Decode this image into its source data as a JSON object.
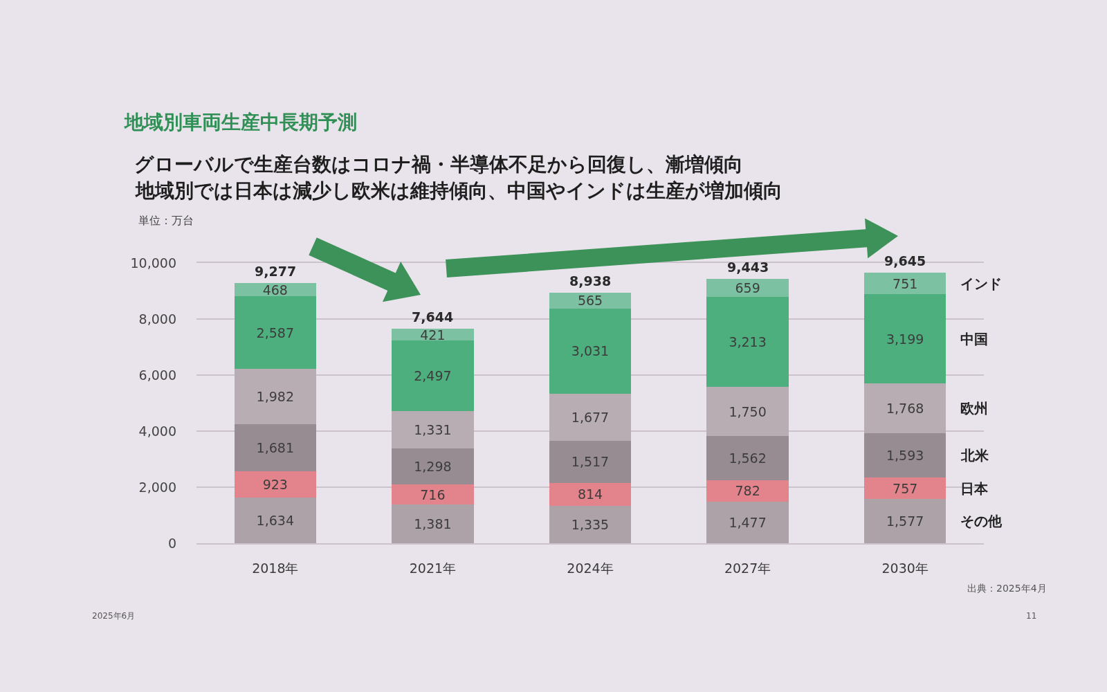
{
  "chart_data": {
    "type": "bar",
    "stacked": true,
    "title": "地域別車両生産中長期予測",
    "subtitle": "グローバルで生産台数はコロナ禍・半導体不足から回復し、漸増傾向",
    "ylabel": "単位：万台",
    "categories": [
      "2018年",
      "2021年",
      "2024年",
      "2027年",
      "2030年"
    ],
    "series": [
      {
        "name": "その他",
        "color": "#aca2a7",
        "values": [
          1634,
          1381,
          1335,
          1477,
          1577
        ],
        "value_labels": [
          "1,634",
          "1,381",
          "1,335",
          "1,477",
          "1,577"
        ]
      },
      {
        "name": "日本",
        "color": "#e3838b",
        "values": [
          923,
          716,
          814,
          782,
          757
        ],
        "value_labels": [
          "923",
          "716",
          "814",
          "782",
          "757"
        ]
      },
      {
        "name": "北米",
        "color": "#978c91",
        "values": [
          1681,
          1298,
          1517,
          1562,
          1593
        ],
        "value_labels": [
          "1,681",
          "1,298",
          "1,517",
          "1,562",
          "1,593"
        ]
      },
      {
        "name": "欧州",
        "color": "#b8adb2",
        "values": [
          1982,
          1331,
          1677,
          1750,
          1768
        ],
        "value_labels": [
          "1,982",
          "1,331",
          "1,677",
          "1,750",
          "1,768"
        ]
      },
      {
        "name": "中国",
        "color": "#4dae7e",
        "values": [
          2587,
          2497,
          3031,
          3213,
          3199
        ],
        "value_labels": [
          "2,587",
          "2,497",
          "3,031",
          "3,213",
          "3,199"
        ]
      },
      {
        "name": "インド",
        "color": "#7cc2a2",
        "values": [
          468,
          421,
          565,
          659,
          751
        ],
        "value_labels": [
          "468",
          "421",
          "565",
          "659",
          "751"
        ]
      }
    ],
    "totals": [
      "9,277",
      "7,644",
      "8,938",
      "9,443",
      "9,645"
    ],
    "ylim": [
      0,
      10000
    ],
    "yticks": [
      0,
      {
        "value": 2000,
        "label": "2,000"
      },
      {
        "value": 4000,
        "label": "4,000"
      },
      {
        "value": 6000,
        "label": "6,000"
      },
      {
        "value": 8000,
        "label": "8,000"
      },
      {
        "value": 10000,
        "label": "10,000"
      }
    ],
    "grid": "y",
    "annotations": [
      "地域別では日本は減少し欧米は維持傾向、中国やインドは生産が増加傾向",
      "出典：2025年4月",
      "2025年6月",
      "11"
    ]
  }
}
